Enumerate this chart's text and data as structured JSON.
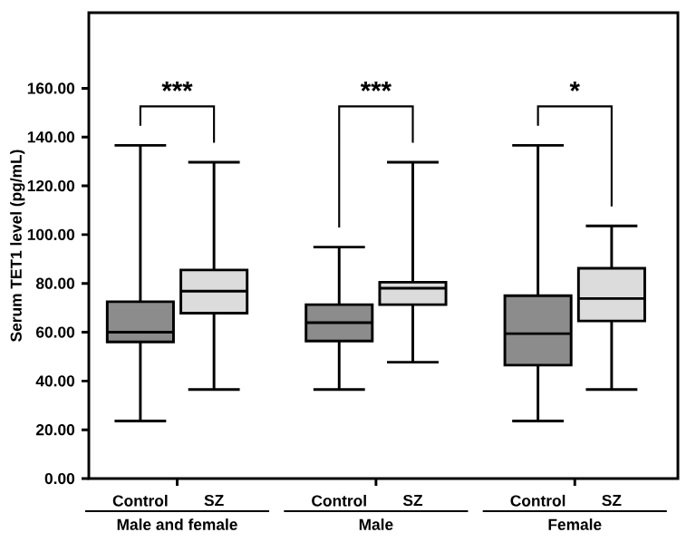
{
  "chart_data": {
    "type": "box",
    "ylabel": "Serum TET1 level (pg/mL)",
    "categories": [
      "Control",
      "SZ",
      "Control",
      "SZ",
      "Control",
      "SZ"
    ],
    "boxes": [
      {
        "low": 23.6,
        "q1": 56,
        "median": 60,
        "q3": 72.5,
        "high": 136.6
      },
      {
        "low": 36.5,
        "q1": 67.8,
        "median": 76.8,
        "q3": 85.5,
        "high": 129.7
      },
      {
        "low": 36.5,
        "q1": 56.4,
        "median": 63.9,
        "q3": 71.3,
        "high": 94.9
      },
      {
        "low": 47.7,
        "q1": 71.3,
        "median": 78,
        "q3": 80.5,
        "high": 129.7
      },
      {
        "low": 23.6,
        "q1": 46.5,
        "median": 59.4,
        "q3": 75,
        "high": 136.6
      },
      {
        "low": 36.5,
        "q1": 64.6,
        "median": 73.8,
        "q3": 86.2,
        "high": 103.6
      }
    ],
    "colors": [
      "#8c8c8c",
      "#dcdcdc",
      "#8c8c8c",
      "#dcdcdc",
      "#8c8c8c",
      "#dcdcdc"
    ],
    "ylim": [
      0,
      191
    ],
    "yticks": [
      {
        "value": 0,
        "label": "0.00"
      },
      {
        "value": 20,
        "label": "20.00"
      },
      {
        "value": 40,
        "label": "40.00"
      },
      {
        "value": 60,
        "label": "60.00"
      },
      {
        "value": 80,
        "label": "80.00"
      },
      {
        "value": 100,
        "label": "100.00"
      },
      {
        "value": 120,
        "label": "120.00"
      },
      {
        "value": 140,
        "label": "140.00"
      },
      {
        "value": 160,
        "label": "160.00"
      }
    ],
    "annotations": [
      "Male and female",
      "Male",
      "Female",
      "***",
      "***",
      "*"
    ]
  }
}
